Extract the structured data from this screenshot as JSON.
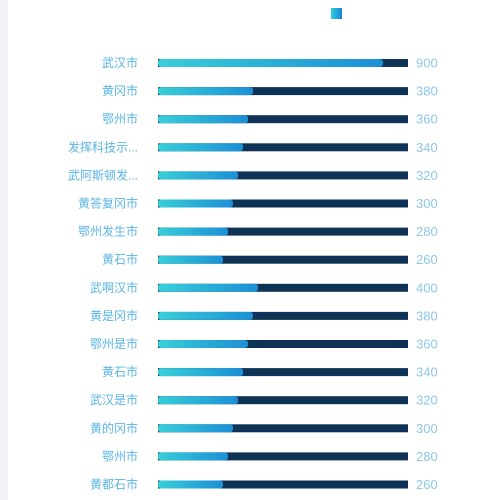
{
  "chart_data": {
    "type": "bar",
    "orientation": "horizontal",
    "categories": [
      "武汉市",
      "黄冈市",
      "鄂州市",
      "发挥科技示...",
      "武阿斯顿发...",
      "黄答复冈市",
      "鄂州发生市",
      "黄石市",
      "武啊汉市",
      "黄是冈市",
      "鄂州是市",
      "黄石市",
      "武汉是市",
      "黄的冈市",
      "鄂州市",
      "黄都石市"
    ],
    "values": [
      900,
      380,
      360,
      340,
      320,
      300,
      280,
      260,
      400,
      380,
      360,
      340,
      320,
      300,
      280,
      260
    ],
    "value_labels": [
      "900",
      "380",
      "360",
      "340",
      "320",
      "300",
      "280",
      "260",
      "400",
      "380",
      "360",
      "340",
      "320",
      "300",
      "280",
      "260"
    ],
    "xlim": [
      0,
      1000
    ],
    "grid": false,
    "legend_position": "top-right",
    "legend_text": "",
    "title": "",
    "xlabel": "",
    "ylabel": ""
  },
  "colors": {
    "track": "#0f3356",
    "bar_start": "#38cfd8",
    "bar_end": "#1c8fd6",
    "category_text": "#5ab4e5",
    "value_text": "#8cc8ec"
  }
}
